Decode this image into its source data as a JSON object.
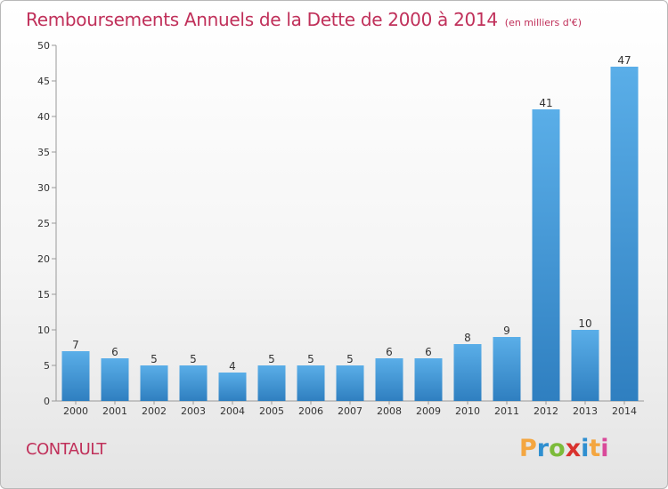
{
  "header": {
    "title": "Remboursements Annuels de la Dette de 2000 à 2014",
    "unit": "(en milliers d'€)"
  },
  "footer": {
    "commune": "CONTAULT",
    "logo": [
      "P",
      "r",
      "o",
      "x",
      "i",
      "t",
      "i"
    ],
    "logo_colors": [
      "#f4a640",
      "#2f8fd0",
      "#7cbb3a",
      "#d9322e",
      "#2f8fd0",
      "#f4a640",
      "#d94a9a"
    ]
  },
  "chart_data": {
    "type": "bar",
    "title": "Remboursements Annuels de la Dette de 2000 à 2014",
    "categories": [
      "2000",
      "2001",
      "2002",
      "2003",
      "2004",
      "2005",
      "2006",
      "2007",
      "2008",
      "2009",
      "2010",
      "2011",
      "2012",
      "2013",
      "2014"
    ],
    "values": [
      7,
      6,
      5,
      5,
      4,
      5,
      5,
      5,
      6,
      6,
      8,
      9,
      41,
      10,
      47
    ],
    "ylim": [
      0,
      50
    ],
    "yticks": [
      0,
      5,
      10,
      15,
      20,
      25,
      30,
      35,
      40,
      45,
      50
    ],
    "grid": false,
    "bar_color_top": "#5aaee8",
    "bar_color_bottom": "#2f7fc0"
  }
}
